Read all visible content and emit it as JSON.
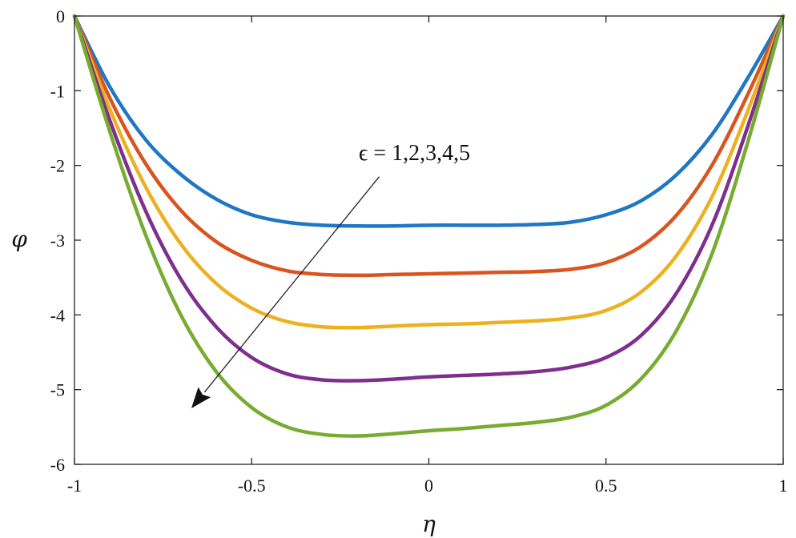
{
  "chart_data": {
    "type": "line",
    "xlabel": "η",
    "ylabel": "φ",
    "xlim": [
      -1,
      1
    ],
    "ylim": [
      -6,
      0
    ],
    "xticks": [
      -1,
      -0.5,
      0,
      0.5,
      1
    ],
    "xtick_labels": [
      "-1",
      "-0.5",
      "0",
      "0.5",
      "1"
    ],
    "yticks": [
      0,
      -1,
      -2,
      -3,
      -4,
      -5,
      -6
    ],
    "ytick_labels": [
      "0",
      "-1",
      "-2",
      "-3",
      "-4",
      "-5",
      "-6"
    ],
    "grid": false,
    "annotation": {
      "text": "ϵ = 1,2,3,4,5",
      "arrow_from": [
        -0.14,
        -2.15
      ],
      "arrow_to": [
        -0.67,
        -5.25
      ]
    },
    "x": [
      -1,
      -0.9,
      -0.8,
      -0.7,
      -0.6,
      -0.5,
      -0.4,
      -0.3,
      -0.2,
      -0.1,
      0,
      0.1,
      0.2,
      0.3,
      0.4,
      0.5,
      0.6,
      0.7,
      0.8,
      0.9,
      1
    ],
    "series": [
      {
        "color": "#1f77c4",
        "values": [
          0,
          -0.95,
          -1.65,
          -2.12,
          -2.45,
          -2.66,
          -2.76,
          -2.8,
          -2.81,
          -2.81,
          -2.8,
          -2.8,
          -2.8,
          -2.79,
          -2.76,
          -2.66,
          -2.47,
          -2.12,
          -1.58,
          -0.83,
          0
        ]
      },
      {
        "color": "#d9541e",
        "values": [
          0,
          -1.1,
          -1.97,
          -2.6,
          -3.02,
          -3.27,
          -3.41,
          -3.46,
          -3.47,
          -3.46,
          -3.45,
          -3.44,
          -3.43,
          -3.42,
          -3.39,
          -3.3,
          -3.08,
          -2.66,
          -1.99,
          -1.05,
          0
        ]
      },
      {
        "color": "#edb120",
        "values": [
          0,
          -1.25,
          -2.28,
          -3.05,
          -3.58,
          -3.91,
          -4.09,
          -4.16,
          -4.17,
          -4.15,
          -4.13,
          -4.12,
          -4.1,
          -4.08,
          -4.04,
          -3.94,
          -3.69,
          -3.2,
          -2.41,
          -1.27,
          0
        ]
      },
      {
        "color": "#7e2f8e",
        "values": [
          0,
          -1.4,
          -2.6,
          -3.52,
          -4.16,
          -4.57,
          -4.79,
          -4.87,
          -4.88,
          -4.86,
          -4.83,
          -4.81,
          -4.79,
          -4.76,
          -4.7,
          -4.57,
          -4.27,
          -3.7,
          -2.79,
          -1.48,
          0
        ]
      },
      {
        "color": "#77ac30",
        "values": [
          0,
          -1.55,
          -2.92,
          -4.0,
          -4.76,
          -5.24,
          -5.5,
          -5.6,
          -5.62,
          -5.59,
          -5.55,
          -5.52,
          -5.48,
          -5.44,
          -5.37,
          -5.21,
          -4.85,
          -4.2,
          -3.17,
          -1.69,
          0
        ]
      }
    ]
  }
}
